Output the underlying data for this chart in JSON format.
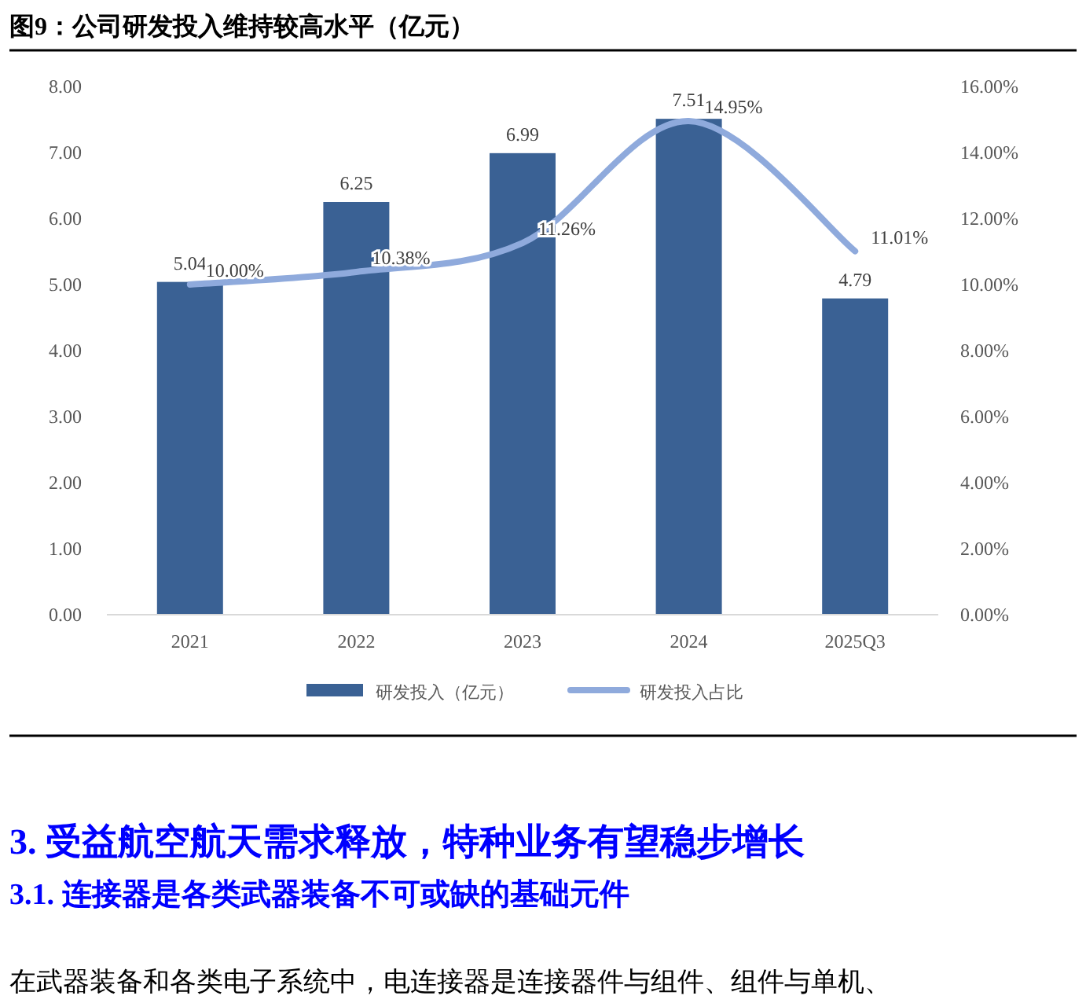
{
  "chart_data": {
    "type": "bar",
    "title": "图9：公司研发投入维持较高水平（亿元）",
    "categories": [
      "2021",
      "2022",
      "2023",
      "2024",
      "2025Q3"
    ],
    "series": [
      {
        "name": "研发投入（亿元）",
        "color": "#3a6194",
        "values": [
          5.04,
          6.25,
          6.99,
          7.51,
          4.79
        ],
        "value_labels": [
          "5.04",
          "6.25",
          "6.99",
          "7.51",
          "4.79"
        ]
      },
      {
        "name": "研发投入占比",
        "type": "line",
        "axis": "y2",
        "color": "#8faadc",
        "values": [
          10.0,
          10.38,
          11.26,
          14.95,
          11.01
        ],
        "value_labels": [
          "10.00%",
          "10.38%",
          "11.26%",
          "14.95%",
          "11.01%"
        ]
      }
    ],
    "ylim": [
      0,
      8
    ],
    "yticks": [
      {
        "value": 0,
        "label": "0.00"
      },
      {
        "value": 1,
        "label": "1.00"
      },
      {
        "value": 2,
        "label": "2.00"
      },
      {
        "value": 3,
        "label": "3.00"
      },
      {
        "value": 4,
        "label": "4.00"
      },
      {
        "value": 5,
        "label": "5.00"
      },
      {
        "value": 6,
        "label": "6.00"
      },
      {
        "value": 7,
        "label": "7.00"
      },
      {
        "value": 8,
        "label": "8.00"
      }
    ],
    "y2lim": [
      0,
      16
    ],
    "y2ticks": [
      {
        "value": 0,
        "label": "0.00%"
      },
      {
        "value": 2,
        "label": "2.00%"
      },
      {
        "value": 4,
        "label": "4.00%"
      },
      {
        "value": 6,
        "label": "6.00%"
      },
      {
        "value": 8,
        "label": "8.00%"
      },
      {
        "value": 10,
        "label": "10.00%"
      },
      {
        "value": 12,
        "label": "12.00%"
      },
      {
        "value": 14,
        "label": "14.00%"
      },
      {
        "value": 16,
        "label": "16.00%"
      }
    ],
    "legend": "bottom",
    "grid": false,
    "annotations": [
      "3.  受益航空航天需求释放，特种业务有望稳步增长",
      "3.1.  连接器是各类武器装备不可或缺的基础元件",
      "在武器装备和各类电子系统中，电连接器是连接器件与组件、组件与单机、"
    ]
  }
}
